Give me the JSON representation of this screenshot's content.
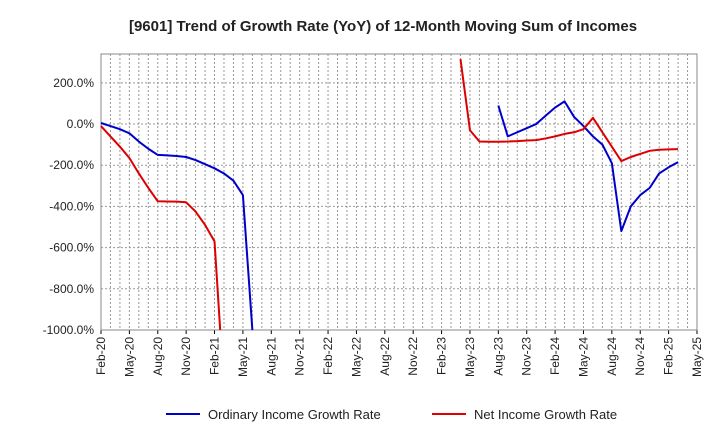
{
  "chart_data": {
    "type": "line",
    "title": "[9601]  Trend of Growth Rate (YoY) of 12-Month Moving Sum of Incomes",
    "xlabel": "",
    "ylabel": "",
    "x_tick_labels": [
      "Feb-20",
      "May-20",
      "Aug-20",
      "Nov-20",
      "Feb-21",
      "May-21",
      "Aug-21",
      "Nov-21",
      "Feb-22",
      "May-22",
      "Aug-22",
      "Nov-22",
      "Feb-23",
      "May-23",
      "Aug-23",
      "Nov-23",
      "Feb-24",
      "May-24",
      "Aug-24",
      "Nov-24",
      "Feb-25",
      "May-25"
    ],
    "y_ticks": [
      200,
      0,
      -200,
      -400,
      -600,
      -800,
      -1000
    ],
    "y_tick_labels": [
      "200.0%",
      "0.0%",
      "-200.0%",
      "-400.0%",
      "-600.0%",
      "-800.0%",
      "-1000.0%"
    ],
    "ylim": [
      -1000,
      340
    ],
    "x_months_range": [
      0,
      63
    ],
    "grid": true,
    "legend_position": "bottom",
    "colors": {
      "ordinary": "#0000cc",
      "net": "#dd0000",
      "grid": "#999999",
      "axis": "#000000"
    },
    "series": [
      {
        "name": "Ordinary Income Growth Rate",
        "color": "#0000cc",
        "points": [
          [
            0,
            5
          ],
          [
            1,
            -10
          ],
          [
            2,
            -25
          ],
          [
            3,
            -45
          ],
          [
            4,
            -85
          ],
          [
            5,
            -120
          ],
          [
            6,
            -150
          ],
          [
            7,
            -152
          ],
          [
            8,
            -155
          ],
          [
            9,
            -160
          ],
          [
            10,
            -175
          ],
          [
            11,
            -195
          ],
          [
            12,
            -215
          ],
          [
            13,
            -240
          ],
          [
            14,
            -275
          ],
          [
            15,
            -345
          ],
          [
            16,
            -1000
          ],
          null,
          [
            42,
            90
          ],
          [
            43,
            -60
          ],
          [
            44,
            -40
          ],
          [
            45,
            -20
          ],
          [
            46,
            0
          ],
          [
            47,
            40
          ],
          [
            48,
            80
          ],
          [
            49,
            110
          ],
          [
            50,
            35
          ],
          [
            51,
            -10
          ],
          [
            52,
            -60
          ],
          [
            53,
            -100
          ],
          [
            54,
            -190
          ],
          [
            55,
            -520
          ],
          [
            56,
            -400
          ],
          [
            57,
            -345
          ],
          [
            58,
            -310
          ],
          [
            59,
            -240
          ],
          [
            60,
            -210
          ],
          [
            61,
            -185
          ]
        ]
      },
      {
        "name": "Net Income Growth Rate",
        "color": "#dd0000",
        "points": [
          [
            0,
            -10
          ],
          [
            1,
            -60
          ],
          [
            2,
            -110
          ],
          [
            3,
            -165
          ],
          [
            4,
            -240
          ],
          [
            5,
            -310
          ],
          [
            6,
            -375
          ],
          [
            7,
            -376
          ],
          [
            8,
            -377
          ],
          [
            9,
            -380
          ],
          [
            10,
            -425
          ],
          [
            11,
            -490
          ],
          [
            12,
            -570
          ],
          [
            12.6,
            -1000
          ],
          null,
          [
            38,
            315
          ],
          [
            39,
            -30
          ],
          [
            40,
            -85
          ],
          [
            41,
            -86
          ],
          [
            42,
            -86
          ],
          [
            43,
            -85
          ],
          [
            44,
            -83
          ],
          [
            45,
            -80
          ],
          [
            46,
            -78
          ],
          [
            47,
            -70
          ],
          [
            48,
            -60
          ],
          [
            49,
            -48
          ],
          [
            50,
            -40
          ],
          [
            51,
            -25
          ],
          [
            52,
            30
          ],
          [
            53,
            -40
          ],
          [
            54,
            -110
          ],
          [
            55,
            -180
          ],
          [
            56,
            -160
          ],
          [
            57,
            -145
          ],
          [
            58,
            -130
          ],
          [
            59,
            -125
          ],
          [
            60,
            -123
          ],
          [
            61,
            -122
          ]
        ]
      }
    ]
  }
}
